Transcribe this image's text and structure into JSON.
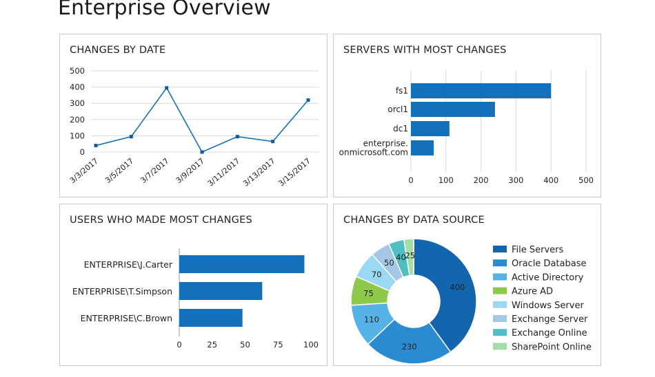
{
  "page": {
    "title": "Enterprise Overview"
  },
  "colors": {
    "accent": "#1470b9",
    "grid": "#d9d9d9",
    "axis": "#9a9a9a",
    "marker": "#0f5fa0"
  },
  "chart_data": [
    {
      "id": "changes-by-date",
      "type": "line",
      "title": "CHANGES BY DATE",
      "xlabel": "",
      "ylabel": "",
      "categories": [
        "3/3/2017",
        "3/5/2017",
        "3/7/2017",
        "3/9/2017",
        "3/11/2017",
        "3/13/2017",
        "3/15/2017"
      ],
      "values": [
        40,
        95,
        395,
        0,
        95,
        65,
        320
      ],
      "ylim": [
        0,
        500
      ],
      "yticks": [
        0,
        100,
        200,
        300,
        400,
        500
      ],
      "grid": true,
      "color": "#1470b9"
    },
    {
      "id": "servers-with-most-changes",
      "type": "bar",
      "orientation": "horizontal",
      "title": "SERVERS WITH MOST CHANGES",
      "categories": [
        [
          "fs1"
        ],
        [
          "orcl1"
        ],
        [
          "dc1"
        ],
        [
          "enterprise.",
          "onmicrosoft.com"
        ]
      ],
      "values": [
        400,
        240,
        110,
        65
      ],
      "xlim": [
        0,
        500
      ],
      "xticks": [
        0,
        100,
        200,
        300,
        400,
        500
      ],
      "grid": true,
      "color": "#1470b9"
    },
    {
      "id": "users-who-made-most-changes",
      "type": "bar",
      "orientation": "horizontal",
      "title": "USERS WHO MADE MOST CHANGES",
      "categories": [
        [
          "ENTERPRISE\\J.Carter"
        ],
        [
          "ENTERPRISE\\T.Simpson"
        ],
        [
          "ENTERPRISE\\C.Brown"
        ]
      ],
      "values": [
        95,
        63,
        48
      ],
      "xlim": [
        0,
        100
      ],
      "xticks": [
        0,
        25,
        50,
        75,
        100
      ],
      "grid": false,
      "color": "#1470b9"
    },
    {
      "id": "changes-by-data-source",
      "type": "pie",
      "donut": true,
      "title": "CHANGES BY DATA SOURCE",
      "legend_position": "right",
      "slices": [
        {
          "label": "File Servers",
          "value": 400,
          "color": "#1366ae"
        },
        {
          "label": "Oracle Database",
          "value": 230,
          "color": "#2b8bd0"
        },
        {
          "label": "Active Directory",
          "value": 110,
          "color": "#56b2e6"
        },
        {
          "label": "Azure AD",
          "value": 75,
          "color": "#8fc94a"
        },
        {
          "label": "Windows Server",
          "value": 70,
          "color": "#9ad8f3"
        },
        {
          "label": "Exchange Server",
          "value": 50,
          "color": "#a5c7e6"
        },
        {
          "label": "Exchange Online",
          "value": 40,
          "color": "#4fbec4"
        },
        {
          "label": "SharePoint Online",
          "value": 25,
          "color": "#a6dca8"
        }
      ]
    }
  ]
}
